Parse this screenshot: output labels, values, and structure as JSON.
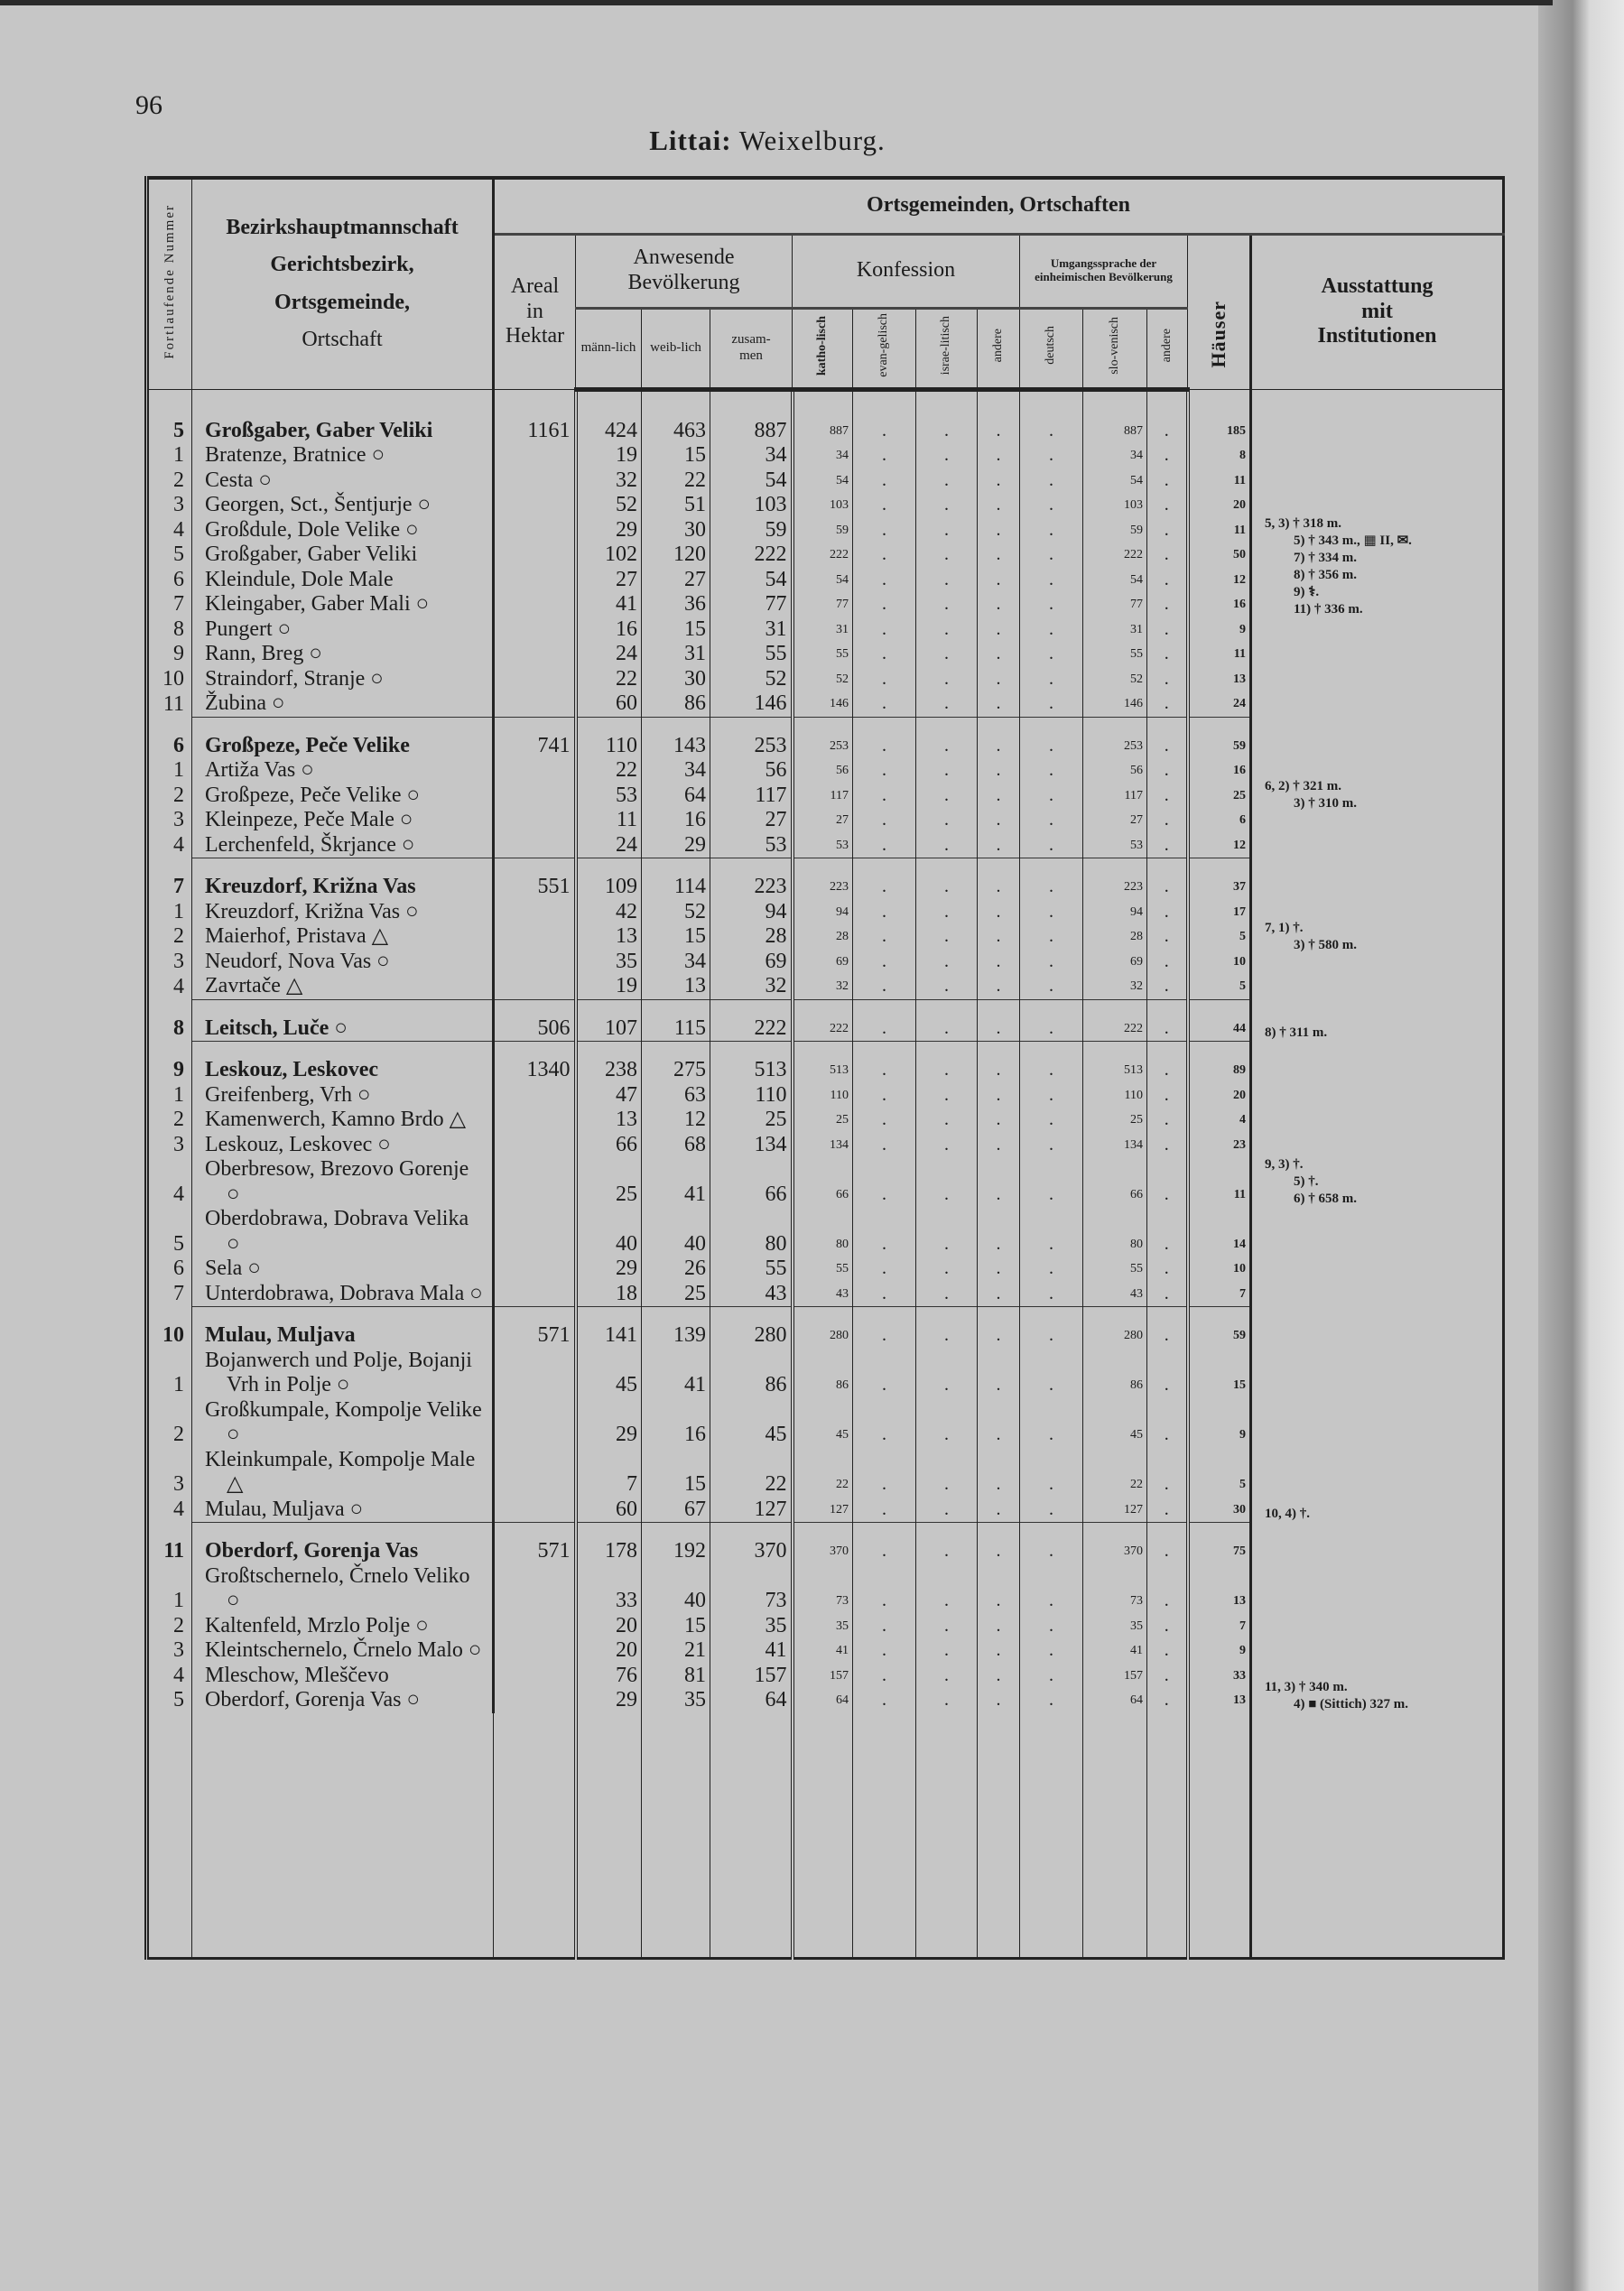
{
  "page_number": "96",
  "title": {
    "district": "Littai:",
    "court": "Weixelburg."
  },
  "header": {
    "nummer": "Fortlaufende Nummer",
    "name_lines": [
      "Bezirkshauptmannschaft",
      "Gerichtsbezirk,",
      "Ortsgemeinde,",
      "Ortschaft"
    ],
    "top": "Ortsgemeinden, Ortschaften",
    "areal": [
      "Areal",
      "in",
      "Hektar"
    ],
    "bevoelkerung": "Anwesende Bevölkerung",
    "bev_cols": [
      "männ-lich",
      "weib-lich",
      "zusam-men"
    ],
    "konfession": "Konfession",
    "konf_cols": [
      "katho-lisch",
      "evan-gelisch",
      "israe-litisch",
      "andere"
    ],
    "sprache": "Umgangssprache der einheimischen Bevölkerung",
    "sprache_cols": [
      "deutsch",
      "slo-venisch",
      "andere"
    ],
    "haeuser": "Häuser",
    "ausstattung": [
      "Ausstattung",
      "mit",
      "Institutionen"
    ]
  },
  "empty_mark": ".",
  "groups": [
    {
      "no": "5",
      "name": "Großgaber, Gaber Veliki",
      "areal": "1161",
      "m": "424",
      "w": "463",
      "z": "887",
      "kath": "887",
      "slov": "887",
      "houses": "185",
      "notes": [
        "5, 3) † 318 m.",
        "5) † 343 m., ▦ II, ✉.",
        "7) † 334 m.",
        "8) † 356 m.",
        "9) ⚕.",
        "11) † 336 m."
      ],
      "places": [
        {
          "no": "1",
          "name": "Bratenze, Bratnice ○",
          "m": "19",
          "w": "15",
          "z": "34",
          "kath": "34",
          "slov": "34",
          "houses": "8"
        },
        {
          "no": "2",
          "name": "Cesta ○",
          "m": "32",
          "w": "22",
          "z": "54",
          "kath": "54",
          "slov": "54",
          "houses": "11"
        },
        {
          "no": "3",
          "name": "Georgen, Sct., Šentjurje ○",
          "m": "52",
          "w": "51",
          "z": "103",
          "kath": "103",
          "slov": "103",
          "houses": "20"
        },
        {
          "no": "4",
          "name": "Großdule, Dole Velike ○",
          "m": "29",
          "w": "30",
          "z": "59",
          "kath": "59",
          "slov": "59",
          "houses": "11"
        },
        {
          "no": "5",
          "name": "Großgaber, Gaber Veliki",
          "m": "102",
          "w": "120",
          "z": "222",
          "kath": "222",
          "slov": "222",
          "houses": "50"
        },
        {
          "no": "6",
          "name": "Kleindule, Dole Male",
          "m": "27",
          "w": "27",
          "z": "54",
          "kath": "54",
          "slov": "54",
          "houses": "12"
        },
        {
          "no": "7",
          "name": "Kleingaber, Gaber Mali ○",
          "m": "41",
          "w": "36",
          "z": "77",
          "kath": "77",
          "slov": "77",
          "houses": "16"
        },
        {
          "no": "8",
          "name": "Pungert ○",
          "m": "16",
          "w": "15",
          "z": "31",
          "kath": "31",
          "slov": "31",
          "houses": "9"
        },
        {
          "no": "9",
          "name": "Rann, Breg ○",
          "m": "24",
          "w": "31",
          "z": "55",
          "kath": "55",
          "slov": "55",
          "houses": "11"
        },
        {
          "no": "10",
          "name": "Straindorf, Stranje ○",
          "m": "22",
          "w": "30",
          "z": "52",
          "kath": "52",
          "slov": "52",
          "houses": "13"
        },
        {
          "no": "11",
          "name": "Žubina ○",
          "m": "60",
          "w": "86",
          "z": "146",
          "kath": "146",
          "slov": "146",
          "houses": "24"
        }
      ]
    },
    {
      "no": "6",
      "name": "Großpeze, Peče Velike",
      "areal": "741",
      "m": "110",
      "w": "143",
      "z": "253",
      "kath": "253",
      "slov": "253",
      "houses": "59",
      "notes": [
        "6, 2) † 321 m.",
        "3) † 310 m."
      ],
      "places": [
        {
          "no": "1",
          "name": "Artiža Vas ○",
          "m": "22",
          "w": "34",
          "z": "56",
          "kath": "56",
          "slov": "56",
          "houses": "16"
        },
        {
          "no": "2",
          "name": "Großpeze, Peče Velike ○",
          "m": "53",
          "w": "64",
          "z": "117",
          "kath": "117",
          "slov": "117",
          "houses": "25"
        },
        {
          "no": "3",
          "name": "Kleinpeze, Peče Male ○",
          "m": "11",
          "w": "16",
          "z": "27",
          "kath": "27",
          "slov": "27",
          "houses": "6"
        },
        {
          "no": "4",
          "name": "Lerchenfeld, Škrjance ○",
          "m": "24",
          "w": "29",
          "z": "53",
          "kath": "53",
          "slov": "53",
          "houses": "12"
        }
      ]
    },
    {
      "no": "7",
      "name": "Kreuzdorf, Križna Vas",
      "areal": "551",
      "m": "109",
      "w": "114",
      "z": "223",
      "kath": "223",
      "slov": "223",
      "houses": "37",
      "notes": [
        "7, 1) †.",
        "3) † 580 m."
      ],
      "places": [
        {
          "no": "1",
          "name": "Kreuzdorf, Križna Vas ○",
          "m": "42",
          "w": "52",
          "z": "94",
          "kath": "94",
          "slov": "94",
          "houses": "17"
        },
        {
          "no": "2",
          "name": "Maierhof, Pristava △",
          "m": "13",
          "w": "15",
          "z": "28",
          "kath": "28",
          "slov": "28",
          "houses": "5"
        },
        {
          "no": "3",
          "name": "Neudorf, Nova Vas ○",
          "m": "35",
          "w": "34",
          "z": "69",
          "kath": "69",
          "slov": "69",
          "houses": "10"
        },
        {
          "no": "4",
          "name": "Zavrtače △",
          "m": "19",
          "w": "13",
          "z": "32",
          "kath": "32",
          "slov": "32",
          "houses": "5"
        }
      ]
    },
    {
      "no": "8",
      "name": "Leitsch, Luče ○",
      "areal": "506",
      "m": "107",
      "w": "115",
      "z": "222",
      "kath": "222",
      "slov": "222",
      "houses": "44",
      "notes": [
        "8) † 311 m."
      ],
      "places": []
    },
    {
      "no": "9",
      "name": "Leskouz, Leskovec",
      "areal": "1340",
      "m": "238",
      "w": "275",
      "z": "513",
      "kath": "513",
      "slov": "513",
      "houses": "89",
      "notes": [
        "9, 3) †.",
        "5) †.",
        "6) † 658 m."
      ],
      "places": [
        {
          "no": "1",
          "name": "Greifenberg, Vrh ○",
          "m": "47",
          "w": "63",
          "z": "110",
          "kath": "110",
          "slov": "110",
          "houses": "20"
        },
        {
          "no": "2",
          "name": "Kamenwerch, Kamno Brdo △",
          "m": "13",
          "w": "12",
          "z": "25",
          "kath": "25",
          "slov": "25",
          "houses": "4"
        },
        {
          "no": "3",
          "name": "Leskouz, Leskovec ○",
          "m": "66",
          "w": "68",
          "z": "134",
          "kath": "134",
          "slov": "134",
          "houses": "23"
        },
        {
          "no": "4",
          "name": "Oberbresow, Brezovo Gorenje ○",
          "m": "25",
          "w": "41",
          "z": "66",
          "kath": "66",
          "slov": "66",
          "houses": "11"
        },
        {
          "no": "5",
          "name": "Oberdobrawa, Dobrava Velika ○",
          "m": "40",
          "w": "40",
          "z": "80",
          "kath": "80",
          "slov": "80",
          "houses": "14"
        },
        {
          "no": "6",
          "name": "Sela ○",
          "m": "29",
          "w": "26",
          "z": "55",
          "kath": "55",
          "slov": "55",
          "houses": "10"
        },
        {
          "no": "7",
          "name": "Unterdobrawa, Dobrava Mala ○",
          "m": "18",
          "w": "25",
          "z": "43",
          "kath": "43",
          "slov": "43",
          "houses": "7"
        }
      ]
    },
    {
      "no": "10",
      "name": "Mulau, Muljava",
      "areal": "571",
      "m": "141",
      "w": "139",
      "z": "280",
      "kath": "280",
      "slov": "280",
      "houses": "59",
      "notes": [
        "10, 4) †."
      ],
      "places": [
        {
          "no": "1",
          "name": "Bojanwerch und Polje, Bojanji Vrh in Polje ○",
          "m": "45",
          "w": "41",
          "z": "86",
          "kath": "86",
          "slov": "86",
          "houses": "15"
        },
        {
          "no": "2",
          "name": "Großkumpale, Kompolje Velike ○",
          "m": "29",
          "w": "16",
          "z": "45",
          "kath": "45",
          "slov": "45",
          "houses": "9"
        },
        {
          "no": "3",
          "name": "Kleinkumpale, Kompolje Male △",
          "m": "7",
          "w": "15",
          "z": "22",
          "kath": "22",
          "slov": "22",
          "houses": "5"
        },
        {
          "no": "4",
          "name": "Mulau, Muljava ○",
          "m": "60",
          "w": "67",
          "z": "127",
          "kath": "127",
          "slov": "127",
          "houses": "30"
        }
      ]
    },
    {
      "no": "11",
      "name": "Oberdorf, Gorenja Vas",
      "areal": "571",
      "m": "178",
      "w": "192",
      "z": "370",
      "kath": "370",
      "slov": "370",
      "houses": "75",
      "notes": [
        "11, 3) † 340 m.",
        "4) ■ (Sittich) 327 m."
      ],
      "places": [
        {
          "no": "1",
          "name": "Großtschernelo, Črnelo Veliko ○",
          "m": "33",
          "w": "40",
          "z": "73",
          "kath": "73",
          "slov": "73",
          "houses": "13"
        },
        {
          "no": "2",
          "name": "Kaltenfeld, Mrzlo Polje ○",
          "m": "20",
          "w": "15",
          "z": "35",
          "kath": "35",
          "slov": "35",
          "houses": "7"
        },
        {
          "no": "3",
          "name": "Kleintschernelo, Črnelo Malo ○",
          "m": "20",
          "w": "21",
          "z": "41",
          "kath": "41",
          "slov": "41",
          "houses": "9"
        },
        {
          "no": "4",
          "name": "Mleschow, Mleščevo",
          "m": "76",
          "w": "81",
          "z": "157",
          "kath": "157",
          "slov": "157",
          "houses": "33"
        },
        {
          "no": "5",
          "name": "Oberdorf, Gorenja Vas ○",
          "m": "29",
          "w": "35",
          "z": "64",
          "kath": "64",
          "slov": "64",
          "houses": "13"
        }
      ]
    }
  ]
}
